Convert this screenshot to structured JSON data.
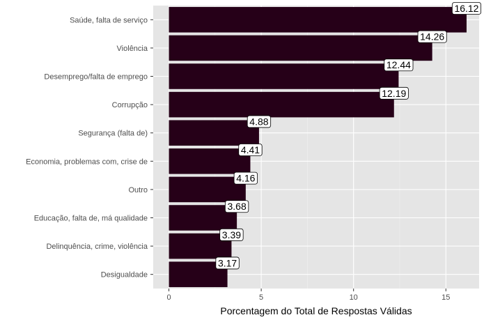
{
  "chart_data": {
    "type": "bar",
    "orientation": "horizontal",
    "categories": [
      "Saúde, falta de serviço",
      "Violência",
      "Desemprego/falta de emprego",
      "Corrupção",
      "Segurança (falta de)",
      "Economia, problemas com, crise de",
      "Outro",
      "Educação, falta de, má qualidade",
      "Delinquência, crime, violência",
      "Desigualdade"
    ],
    "values": [
      16.12,
      14.26,
      12.44,
      12.19,
      4.88,
      4.41,
      4.16,
      3.68,
      3.39,
      3.17
    ],
    "data_labels": [
      "16.12",
      "14.26",
      "12.44",
      "12.19",
      "4.88",
      "4.41",
      "4.16",
      "3.68",
      "3.39",
      "3.17"
    ],
    "xlabel": "Porcentagem do Total de Respostas Válidas",
    "ylabel": "",
    "xlim": [
      -0.85,
      16.8
    ],
    "xticks": [
      0,
      5,
      10,
      15
    ],
    "xtick_labels": [
      "0",
      "5",
      "10",
      "15"
    ],
    "grid": true,
    "legend": "none",
    "colors": {
      "bar": "#260018",
      "panel_background": "#e5e5e5",
      "grid_major": "#ffffff",
      "grid_minor": "#f0f0f0",
      "label_box_fill": "#ffffff",
      "label_box_stroke": "#000000"
    }
  }
}
